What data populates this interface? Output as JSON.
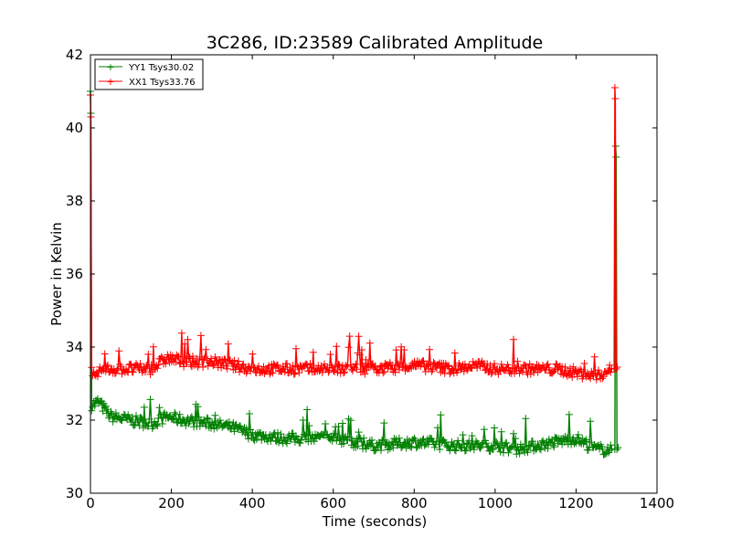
{
  "chart_data": {
    "type": "line",
    "title": "3C286, ID:23589 Calibrated Amplitude",
    "xlabel": "Time (seconds)",
    "ylabel": "Power in Kelvin",
    "xlim": [
      0,
      1400
    ],
    "ylim": [
      30,
      42
    ],
    "x_ticks": [
      "0",
      "200",
      "400",
      "600",
      "800",
      "1000",
      "1200",
      "1400"
    ],
    "y_ticks": [
      "30",
      "32",
      "34",
      "36",
      "38",
      "40",
      "42"
    ],
    "legend_position": "top-left",
    "grid": false,
    "marker": "+",
    "series": [
      {
        "name": "YY1 Tsys30.02",
        "color": "#008000",
        "base": [
          [
            2,
            32.4
          ],
          [
            20,
            32.5
          ],
          [
            50,
            32.1
          ],
          [
            100,
            32.0
          ],
          [
            150,
            31.9
          ],
          [
            190,
            32.1
          ],
          [
            230,
            32.0
          ],
          [
            300,
            31.9
          ],
          [
            350,
            31.8
          ],
          [
            400,
            31.6
          ],
          [
            480,
            31.5
          ],
          [
            550,
            31.5
          ],
          [
            600,
            31.5
          ],
          [
            650,
            31.4
          ],
          [
            700,
            31.3
          ],
          [
            800,
            31.4
          ],
          [
            900,
            31.3
          ],
          [
            950,
            31.3
          ],
          [
            1000,
            31.3
          ],
          [
            1050,
            31.2
          ],
          [
            1100,
            31.3
          ],
          [
            1150,
            31.4
          ],
          [
            1200,
            31.5
          ],
          [
            1250,
            31.2
          ],
          [
            1290,
            31.2
          ]
        ],
        "spikes_x": [
          0,
          1298
        ],
        "spikes_y": [
          41.0,
          39.5
        ],
        "bumps": [
          [
            580,
            680,
            1.0
          ]
        ]
      },
      {
        "name": "XX1 Tsys33.76",
        "color": "#ff0000",
        "base": [
          [
            2,
            33.3
          ],
          [
            50,
            33.4
          ],
          [
            100,
            33.4
          ],
          [
            150,
            33.4
          ],
          [
            190,
            33.7
          ],
          [
            230,
            33.6
          ],
          [
            300,
            33.6
          ],
          [
            350,
            33.5
          ],
          [
            400,
            33.4
          ],
          [
            480,
            33.4
          ],
          [
            550,
            33.4
          ],
          [
            600,
            33.4
          ],
          [
            650,
            33.4
          ],
          [
            700,
            33.4
          ],
          [
            800,
            33.5
          ],
          [
            900,
            33.4
          ],
          [
            950,
            33.5
          ],
          [
            1000,
            33.4
          ],
          [
            1050,
            33.4
          ],
          [
            1100,
            33.4
          ],
          [
            1150,
            33.4
          ],
          [
            1200,
            33.3
          ],
          [
            1250,
            33.2
          ],
          [
            1290,
            33.4
          ]
        ],
        "spikes_x": [
          0,
          1296
        ],
        "spikes_y": [
          40.9,
          41.1
        ],
        "bumps": [
          [
            560,
            700,
            1.0
          ]
        ]
      }
    ]
  }
}
